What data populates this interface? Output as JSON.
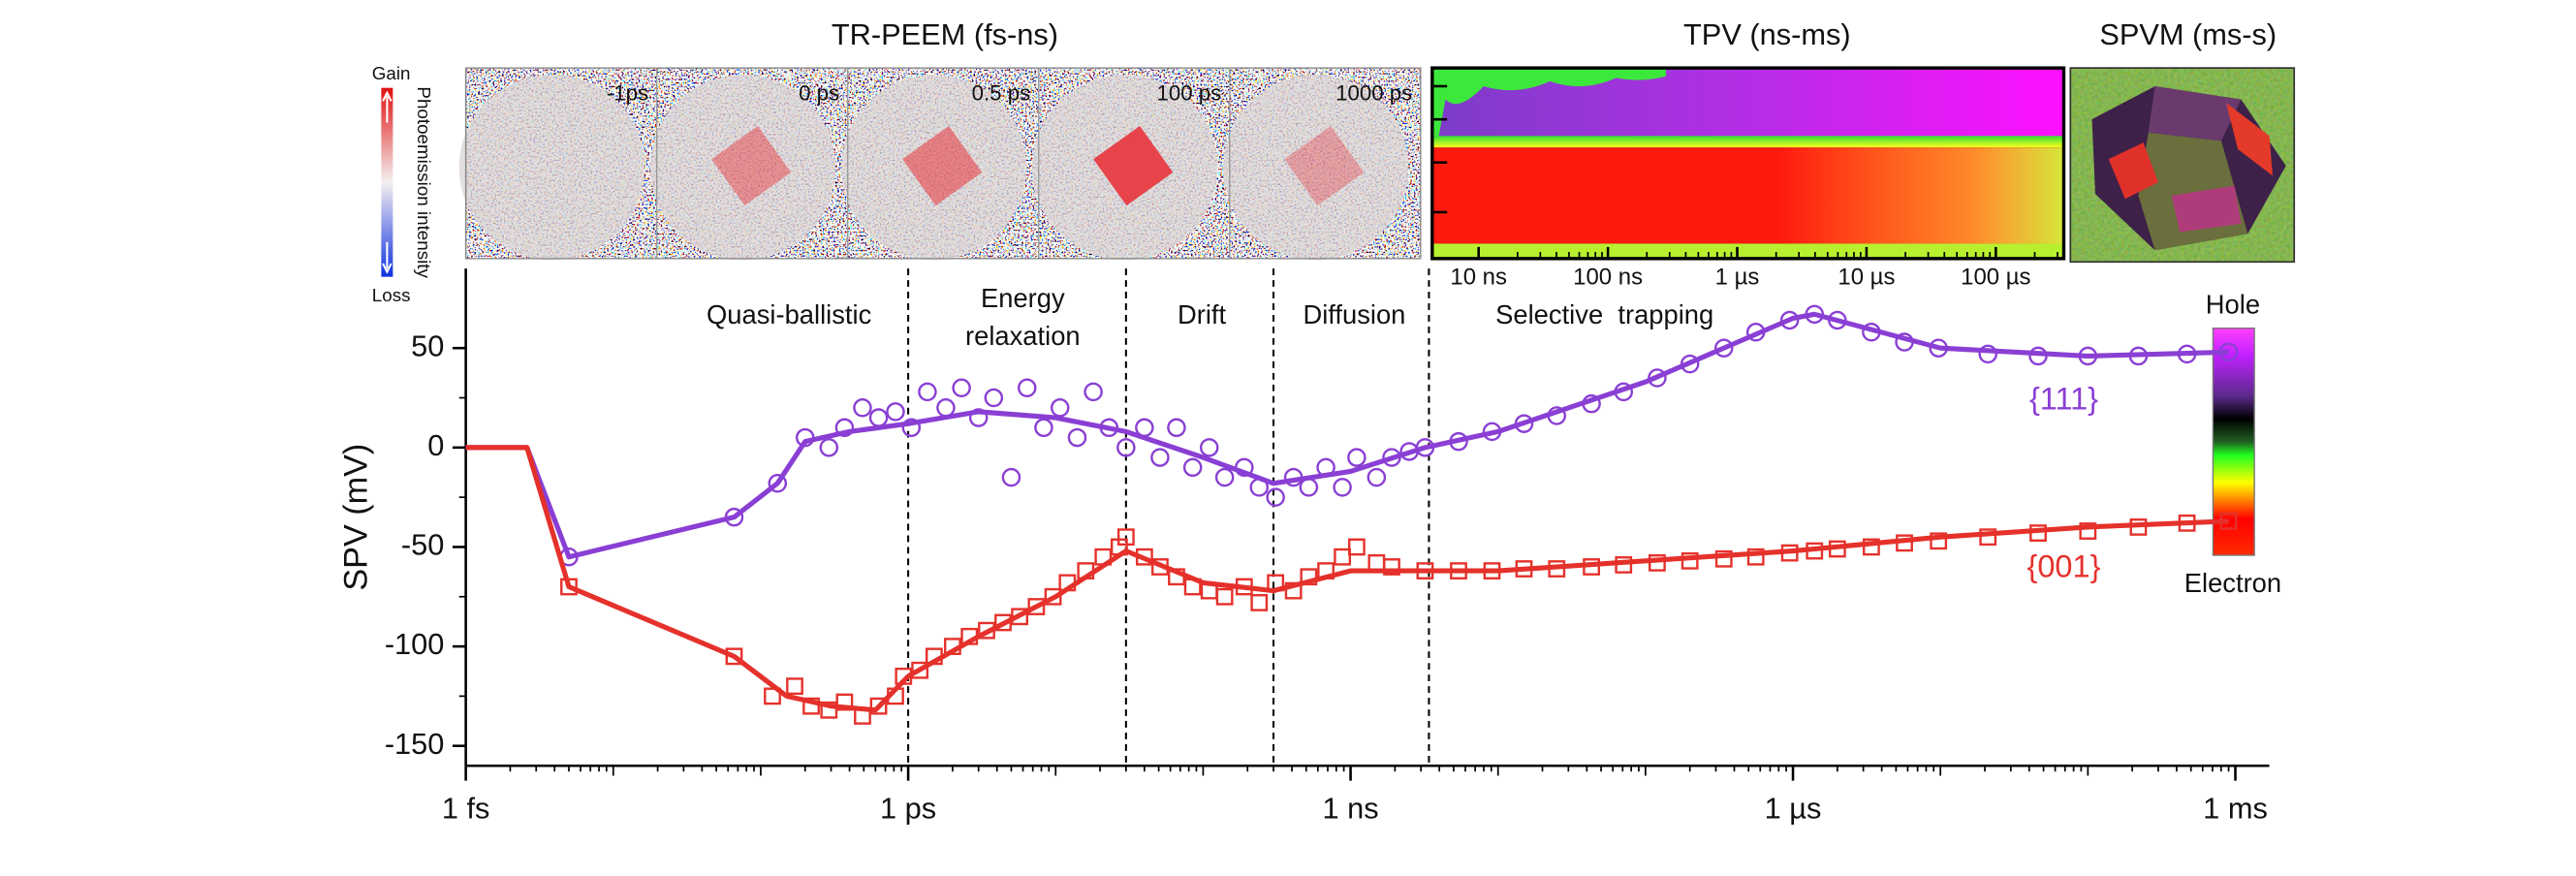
{
  "chart_data": {
    "type": "line",
    "y_label": "SPV (mV)",
    "xscale": "log",
    "xlim": [
      1e-15,
      0.0017
    ],
    "ylim": [
      -160,
      90
    ],
    "xticks": [
      {
        "value": 1e-15,
        "label": "1 fs"
      },
      {
        "value": 1e-12,
        "label": "1 ps"
      },
      {
        "value": 1e-09,
        "label": "1 ns"
      },
      {
        "value": 1e-06,
        "label": "1 µs"
      },
      {
        "value": 0.001,
        "label": "1 ms"
      }
    ],
    "yticks": [
      -150,
      -100,
      -50,
      0,
      50
    ],
    "dividers": [
      1e-12,
      3e-11,
      3e-10,
      3.4e-09
    ],
    "regions": [
      {
        "lines": [
          "Quasi-ballistic"
        ]
      },
      {
        "lines": [
          "Energy",
          "relaxation"
        ]
      },
      {
        "lines": [
          "Drift"
        ]
      },
      {
        "lines": [
          "Diffusion"
        ]
      },
      {
        "lines": [
          "Selective  trapping"
        ]
      }
    ],
    "colorbar": {
      "top": "Hole",
      "bottom": "Electron"
    },
    "series": [
      {
        "name": "{111}",
        "color": "#8a3fd4",
        "marker": "circle",
        "x": [
          5e-15,
          6.6e-14,
          1.3e-13,
          2e-13,
          2.9e-13,
          3.7e-13,
          4.9e-13,
          6.3e-13,
          8.2e-13,
          1.05e-12,
          1.35e-12,
          1.8e-12,
          2.3e-12,
          3e-12,
          3.8e-12,
          5e-12,
          6.4e-12,
          8.3e-12,
          1.07e-11,
          1.4e-11,
          1.8e-11,
          2.3e-11,
          3e-11,
          4e-11,
          5.1e-11,
          6.6e-11,
          8.5e-11,
          1.1e-10,
          1.4e-10,
          1.9e-10,
          2.4e-10,
          3.1e-10,
          4.1e-10,
          5.2e-10,
          6.8e-10,
          8.8e-10,
          1.1e-09,
          1.5e-09,
          1.9e-09,
          2.5e-09,
          3.2e-09,
          5.4e-09,
          9.1e-09,
          1.5e-08,
          2.5e-08,
          4.3e-08,
          7.1e-08,
          1.2e-07,
          2e-07,
          3.4e-07,
          5.6e-07,
          9.5e-07,
          1.4e-06,
          2e-06,
          3.4e-06,
          5.7e-06,
          9.7e-06,
          2.1e-05,
          4.6e-05,
          0.0001,
          0.00022,
          0.00047,
          0.0009
        ],
        "values": [
          -55,
          -35,
          -18,
          5,
          0,
          10,
          20,
          15,
          18,
          10,
          28,
          20,
          30,
          15,
          25,
          -15,
          30,
          10,
          20,
          5,
          28,
          10,
          0,
          10,
          -5,
          10,
          -10,
          0,
          -15,
          -10,
          -20,
          -25,
          -15,
          -20,
          -10,
          -20,
          -5,
          -15,
          -5,
          -2,
          0,
          3,
          8,
          12,
          16,
          22,
          28,
          35,
          42,
          50,
          58,
          64,
          67,
          64,
          58,
          53,
          50,
          47,
          46,
          46,
          46,
          47,
          48
        ],
        "fit": {
          "x": [
            1e-15,
            2.6e-15,
            5e-15,
            6.6e-14,
            1.3e-13,
            2e-13,
            4e-13,
            1e-12,
            3e-12,
            1e-11,
            3e-11,
            1e-10,
            3e-10,
            1e-09,
            3.2e-09,
            1e-08,
            1e-07,
            1e-06,
            1.4e-06,
            1e-05,
            0.0001,
            0.0009
          ],
          "values": [
            0,
            0,
            -55,
            -35,
            -18,
            3,
            8,
            12,
            18,
            15,
            8,
            -5,
            -18,
            -12,
            0,
            8,
            33,
            65,
            67,
            50,
            46,
            48
          ]
        }
      },
      {
        "name": "{001}",
        "color": "#e5312b",
        "marker": "square",
        "x": [
          5e-15,
          6.6e-14,
          1.2e-13,
          1.7e-13,
          2.2e-13,
          2.9e-13,
          3.7e-13,
          4.9e-13,
          6.3e-13,
          8.2e-13,
          9.3e-13,
          1.2e-12,
          1.5e-12,
          2e-12,
          2.6e-12,
          3.4e-12,
          4.4e-12,
          5.7e-12,
          7.4e-12,
          9.6e-12,
          1.2e-11,
          1.6e-11,
          2.1e-11,
          2.7e-11,
          3e-11,
          4e-11,
          5.1e-11,
          6.6e-11,
          8.5e-11,
          1.1e-10,
          1.4e-10,
          1.9e-10,
          2.4e-10,
          3.1e-10,
          4.1e-10,
          5.2e-10,
          6.8e-10,
          8.8e-10,
          1.1e-09,
          1.5e-09,
          1.9e-09,
          3.2e-09,
          5.4e-09,
          9.1e-09,
          1.5e-08,
          2.5e-08,
          4.3e-08,
          7.1e-08,
          1.2e-07,
          2e-07,
          3.4e-07,
          5.6e-07,
          9.5e-07,
          1.4e-06,
          2e-06,
          3.4e-06,
          5.7e-06,
          9.7e-06,
          2.1e-05,
          4.6e-05,
          0.0001,
          0.00022,
          0.00047,
          0.0009
        ],
        "values": [
          -70,
          -105,
          -125,
          -120,
          -130,
          -132,
          -128,
          -135,
          -130,
          -125,
          -115,
          -112,
          -105,
          -100,
          -95,
          -92,
          -88,
          -85,
          -80,
          -75,
          -68,
          -62,
          -55,
          -50,
          -45,
          -55,
          -60,
          -65,
          -70,
          -72,
          -75,
          -70,
          -78,
          -68,
          -72,
          -65,
          -62,
          -55,
          -50,
          -58,
          -60,
          -62,
          -62,
          -62,
          -61,
          -61,
          -60,
          -59,
          -58,
          -57,
          -56,
          -55,
          -53,
          -52,
          -51,
          -50,
          -48,
          -47,
          -45,
          -43,
          -42,
          -40,
          -38,
          -37
        ],
        "fit": {
          "x": [
            1e-15,
            2.6e-15,
            5e-15,
            6.6e-14,
            1.5e-13,
            3e-13,
            6e-13,
            1e-12,
            3e-12,
            1e-11,
            3e-11,
            1e-10,
            3e-10,
            1e-09,
            3e-09,
            1e-08,
            1e-07,
            1e-06,
            1e-05,
            0.0001,
            0.0009
          ],
          "values": [
            0,
            0,
            -70,
            -105,
            -125,
            -130,
            -132,
            -115,
            -95,
            -75,
            -52,
            -68,
            -72,
            -62,
            -62,
            -62,
            -57,
            -52,
            -45,
            -40,
            -37
          ]
        }
      }
    ]
  },
  "insets": {
    "peem": {
      "title": "TR-PEEM (fs-ns)",
      "frames": [
        "-1ps",
        "0 ps",
        "0.5 ps",
        "100 ps",
        "1000 ps"
      ],
      "colorbar": {
        "top": "Gain",
        "bottom": "Loss",
        "label": "Photoemission intensity"
      }
    },
    "tpv": {
      "title": "TPV (ns-ms)",
      "ticks": [
        "10 ns",
        "100 ns",
        "1 µs",
        "10 µs",
        "100 µs"
      ]
    },
    "spvm": {
      "title": "SPVM (ms-s)"
    }
  }
}
